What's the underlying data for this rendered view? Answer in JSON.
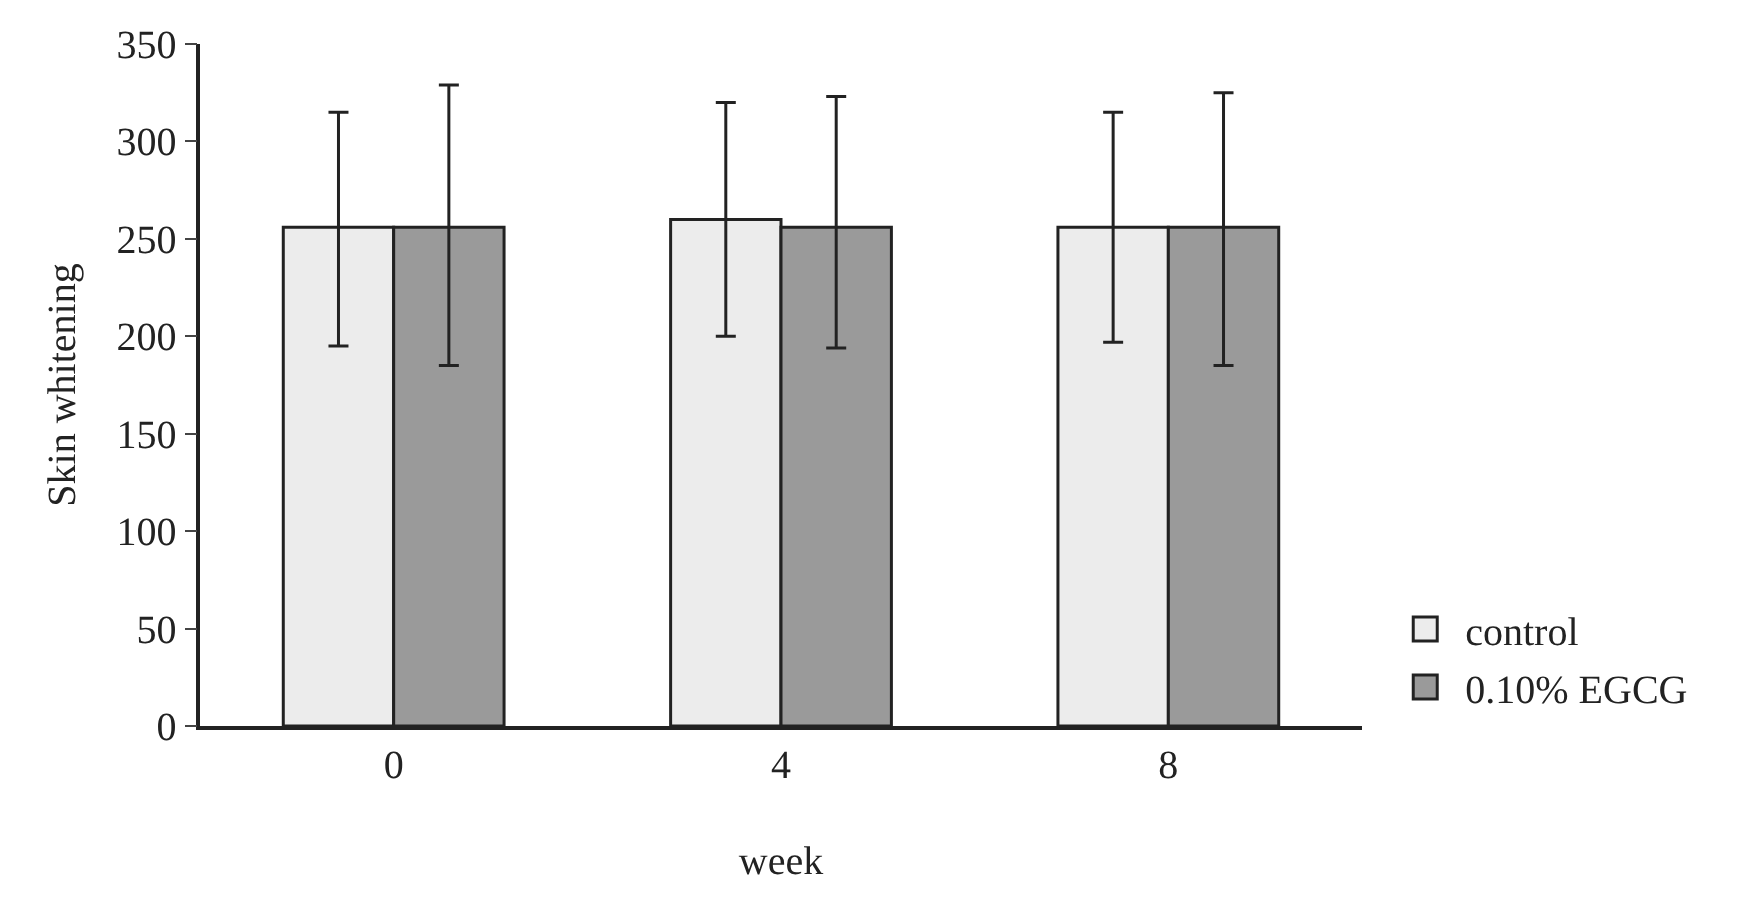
{
  "chart_data": {
    "type": "bar",
    "xlabel": "week",
    "ylabel": "Skin whitening",
    "categories": [
      "0",
      "4",
      "8"
    ],
    "series": [
      {
        "name": "control",
        "color": "#ececec",
        "values": [
          256,
          260,
          256
        ],
        "errors": [
          [
            195,
            315
          ],
          [
            200,
            320
          ],
          [
            197,
            315
          ]
        ]
      },
      {
        "name": "0.10% EGCG",
        "color": "#9a9a9a",
        "values": [
          256,
          256,
          256
        ],
        "errors": [
          [
            185,
            329
          ],
          [
            194,
            323
          ],
          [
            185,
            325
          ]
        ]
      }
    ],
    "ylim": [
      0,
      350
    ],
    "yticks": [
      0,
      50,
      100,
      150,
      200,
      250,
      300,
      350
    ],
    "legend": "bottom right"
  }
}
